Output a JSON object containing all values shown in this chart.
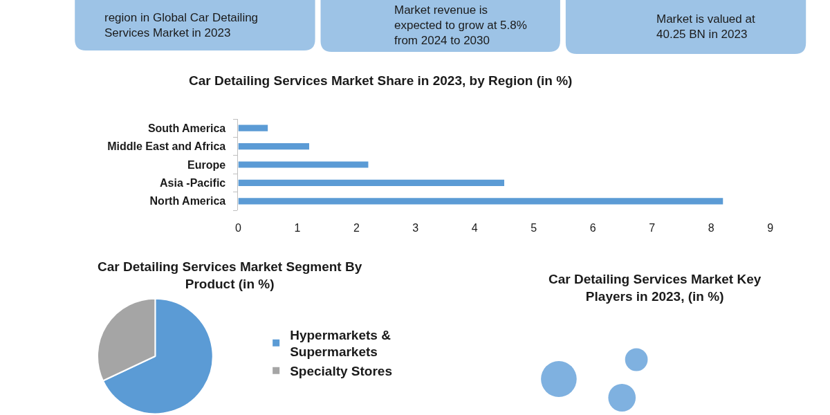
{
  "chart_data": [
    {
      "type": "other",
      "annotations": [
        "region in Global Car Detailing Services Market in 2023"
      ]
    },
    {
      "type": "other",
      "annotations": [
        "Market revenue is expected to grow at 5.8% from 2024 to 2030"
      ]
    },
    {
      "type": "other",
      "annotations": [
        "Market is valued at 40.25 BN in 2023"
      ]
    },
    {
      "type": "bar",
      "title": "Car Detailing Services Market Share in 2023, by Region (in %)",
      "orientation": "horizontal",
      "categories": [
        "South America",
        "Middle East and Africa",
        "Europe",
        "Asia -Pacific",
        "North America"
      ],
      "values": [
        0.5,
        1.2,
        2.2,
        4.5,
        8.2
      ],
      "color": "#5b9bd5",
      "xlim": [
        0,
        9
      ],
      "xticks": [
        0,
        1,
        2,
        3,
        4,
        5,
        6,
        7,
        8,
        9
      ]
    },
    {
      "type": "pie",
      "title": "Car Detailing Services Market Segment By Product (in %)",
      "categories": [
        "Hypermarkets & Supermarkets",
        "Specialty Stores"
      ],
      "values": [
        68,
        32
      ],
      "colors": [
        "#5b9bd5",
        "#a5a5a5"
      ],
      "legend": "right"
    },
    {
      "type": "other",
      "title": "Car Detailing Services Market Key Players in 2023, (in %)"
    }
  ]
}
